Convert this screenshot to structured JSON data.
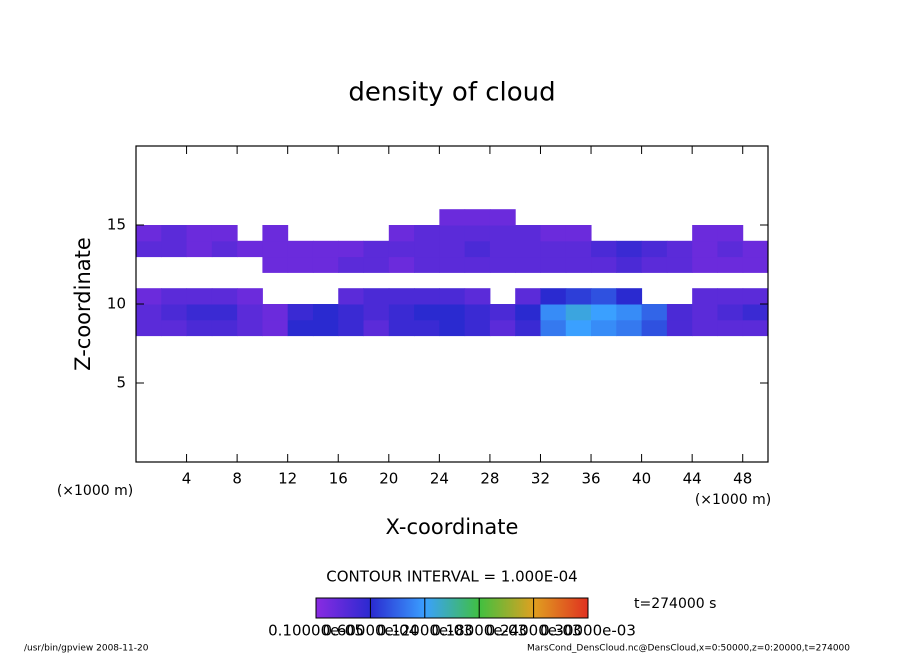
{
  "chart_data": {
    "type": "contour",
    "title": "density of cloud",
    "x_label": "X-coordinate",
    "y_label": "Z-coordinate",
    "x_unit": "(×1000 m)",
    "y_unit": "(×1000 m)",
    "xlim": [
      0,
      50
    ],
    "xticks": [
      4,
      8,
      12,
      16,
      20,
      24,
      28,
      32,
      36,
      40,
      44,
      48
    ],
    "ylim": [
      0,
      20
    ],
    "yticks": [
      5,
      10,
      15
    ],
    "x": [
      1,
      3,
      5,
      7,
      9,
      11,
      13,
      15,
      17,
      19,
      21,
      23,
      25,
      27,
      29,
      31,
      33,
      35,
      37,
      39,
      41,
      43,
      45,
      47,
      49
    ],
    "y": [
      8.5,
      9.5,
      10.5,
      11.5,
      12.5,
      13.5,
      14.5,
      15.5
    ],
    "z": [
      [
        3e-05,
        3e-05,
        4e-05,
        4e-05,
        3e-05,
        2e-05,
        6e-05,
        6e-05,
        5e-05,
        3e-05,
        5e-05,
        5e-05,
        6e-05,
        5e-05,
        3e-05,
        5e-05,
        0.0001,
        0.00012,
        0.00011,
        0.0001,
        8e-05,
        4e-05,
        3e-05,
        3e-05,
        3e-05
      ],
      [
        3e-05,
        4e-05,
        5e-05,
        5e-05,
        3e-05,
        2e-05,
        5e-05,
        6e-05,
        5e-05,
        4e-05,
        5e-05,
        6e-05,
        6e-05,
        5e-05,
        4e-05,
        6e-05,
        0.00011,
        0.00013,
        0.00012,
        0.00011,
        9e-05,
        4e-05,
        3e-05,
        4e-05,
        5e-05
      ],
      [
        2e-05,
        3e-05,
        3e-05,
        3e-05,
        2e-05,
        null,
        null,
        null,
        3e-05,
        4e-05,
        4e-05,
        4e-05,
        4e-05,
        3e-05,
        null,
        3e-05,
        6e-05,
        7e-05,
        8e-05,
        6e-05,
        null,
        null,
        3e-05,
        3e-05,
        3e-05
      ],
      [
        null,
        null,
        null,
        null,
        null,
        null,
        null,
        null,
        null,
        null,
        null,
        null,
        null,
        null,
        null,
        null,
        null,
        null,
        null,
        null,
        null,
        null,
        null,
        null,
        null
      ],
      [
        null,
        null,
        null,
        null,
        null,
        2e-05,
        2e-05,
        2e-05,
        3e-05,
        3e-05,
        2e-05,
        3e-05,
        3e-05,
        3e-05,
        3e-05,
        3e-05,
        3e-05,
        3e-05,
        3e-05,
        4e-05,
        3e-05,
        3e-05,
        2e-05,
        2e-05,
        2e-05
      ],
      [
        3e-05,
        3e-05,
        2e-05,
        3e-05,
        2e-05,
        2e-05,
        2e-05,
        2e-05,
        2e-05,
        3e-05,
        3e-05,
        3e-05,
        3e-05,
        4e-05,
        3e-05,
        3e-05,
        3e-05,
        3e-05,
        4e-05,
        5e-05,
        4e-05,
        3e-05,
        2e-05,
        3e-05,
        2e-05
      ],
      [
        2e-05,
        3e-05,
        2e-05,
        2e-05,
        null,
        2e-05,
        null,
        null,
        null,
        null,
        2e-05,
        3e-05,
        3e-05,
        3e-05,
        3e-05,
        3e-05,
        2e-05,
        2e-05,
        null,
        null,
        null,
        null,
        2e-05,
        2e-05,
        null
      ],
      [
        null,
        null,
        null,
        null,
        null,
        null,
        null,
        null,
        null,
        null,
        null,
        null,
        2e-05,
        2e-05,
        2e-05,
        null,
        null,
        null,
        null,
        null,
        null,
        null,
        null,
        null,
        null
      ]
    ],
    "contour_interval": "CONTOUR INTERVAL = 1.000E-04",
    "time": "t=274000 s",
    "colorbar": {
      "ticks": [
        {
          "value": 1e-06,
          "label": "0.10000e-05"
        },
        {
          "value": 6e-05,
          "label": "0.60000e-04"
        },
        {
          "value": 0.00012,
          "label": "0.12000e-03"
        },
        {
          "value": 0.00018,
          "label": "0.18000e-03"
        },
        {
          "value": 0.00024,
          "label": "0.24000e-03"
        },
        {
          "value": 0.0003,
          "label": "0.30000e-03"
        }
      ],
      "colors": [
        "#8a2be2",
        "#2a2ad0",
        "#3aa0ff",
        "#40c040",
        "#e0a020",
        "#e03020"
      ]
    },
    "footer_left": "/usr/bin/gpview  2008-11-20",
    "footer_right": "MarsCond_DensCloud.nc@DensCloud,x=0:50000,z=0:20000,t=274000"
  }
}
